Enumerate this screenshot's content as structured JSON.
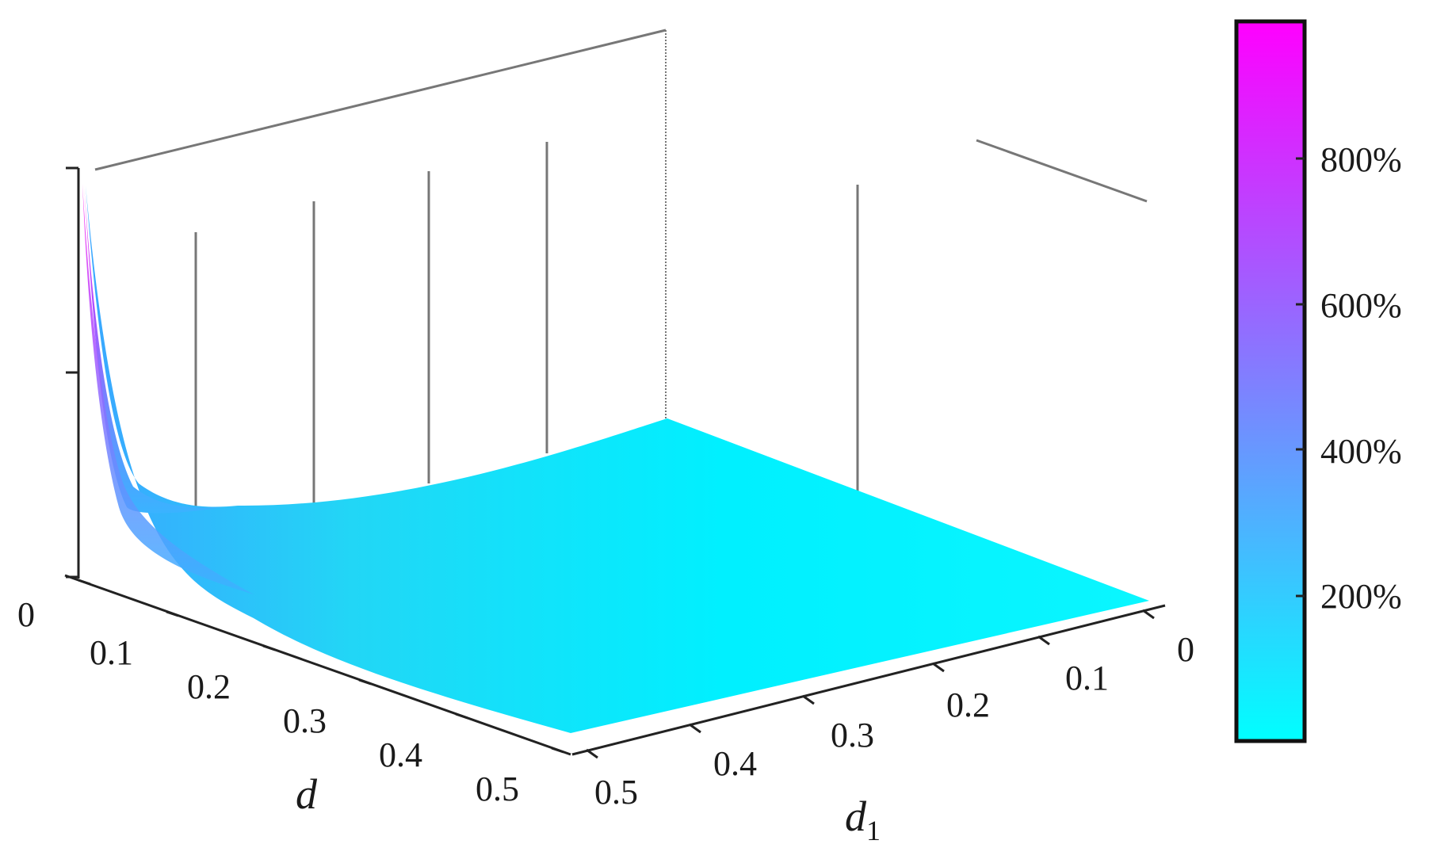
{
  "chart_data": {
    "type": "surface3d",
    "title": "",
    "x_axis": {
      "label": "d",
      "ticks": [
        "0",
        "0.1",
        "0.2",
        "0.3",
        "0.4",
        "0.5"
      ],
      "range": [
        0,
        0.5
      ]
    },
    "y_axis": {
      "label": "d",
      "label_subscript": "1",
      "ticks": [
        "0",
        "0.1",
        "0.2",
        "0.3",
        "0.4",
        "0.5"
      ],
      "range": [
        0,
        0.5
      ]
    },
    "z_axis": {
      "ticks": [],
      "range": [
        0,
        1000
      ]
    },
    "colorbar": {
      "ticks": [
        "200%",
        "400%",
        "600%",
        "800%"
      ],
      "tick_values": [
        200,
        400,
        600,
        800
      ],
      "range": [
        0,
        1000
      ],
      "colormap": [
        "#00ffff",
        "#ff00ff"
      ]
    },
    "surface_description_points": [
      {
        "d": 0.0,
        "d1": 0.5,
        "z": 1000
      },
      {
        "d": 0.05,
        "d1": 0.5,
        "z": 150
      },
      {
        "d": 0.1,
        "d1": 0.5,
        "z": 60
      },
      {
        "d": 0.5,
        "d1": 0.5,
        "z": 5
      },
      {
        "d": 0.5,
        "d1": 0.0,
        "z": 0
      },
      {
        "d": 0.0,
        "d1": 0.0,
        "z": 40
      }
    ],
    "grid": false
  }
}
